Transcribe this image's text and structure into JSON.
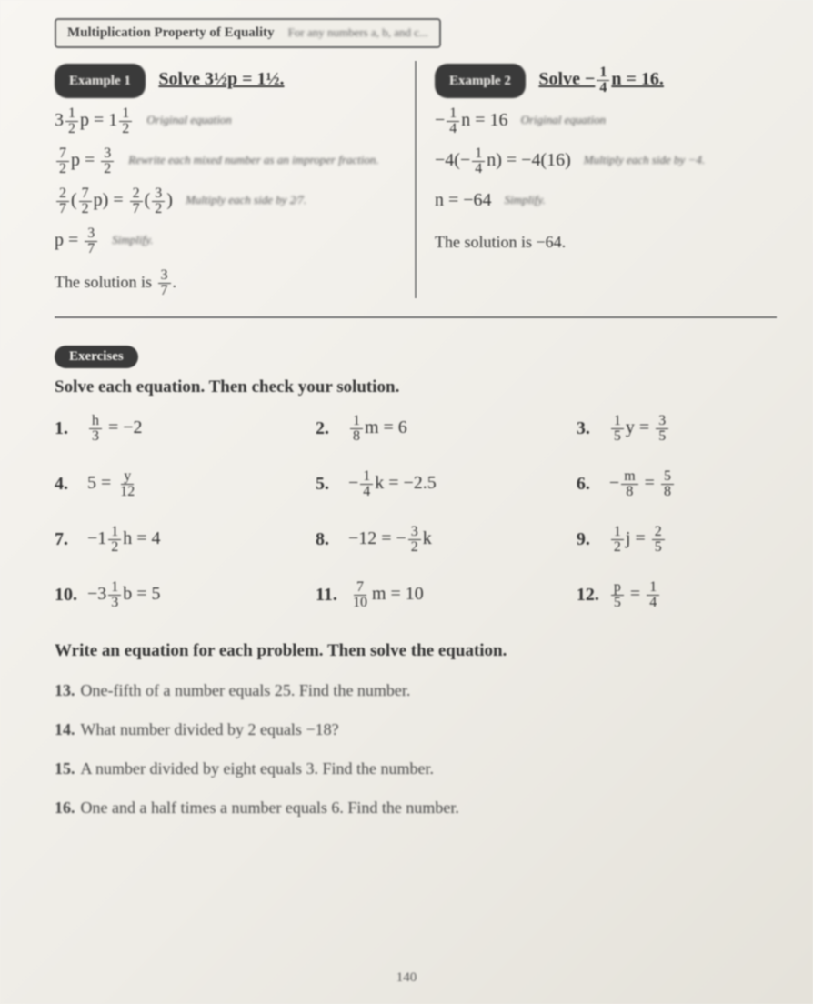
{
  "topbar": {
    "label": "Multiplication Property of Equality",
    "note": "For any numbers a, b, and c..."
  },
  "example_left": {
    "pill": "Example 1",
    "heading": "Solve 3½p = 1½.",
    "steps": [
      {
        "math": "3½p = 1½",
        "note": "Original equation"
      },
      {
        "math": "7⁄2 p = 3⁄2",
        "note": "Rewrite each mixed number as an improper fraction."
      },
      {
        "math": "2⁄7 (7⁄2 p) = 2⁄7 (3⁄2)",
        "note": "Multiply each side by 2⁄7."
      },
      {
        "math": "p = 3⁄7",
        "note": "Simplify."
      }
    ],
    "solution": "The solution is 3⁄7."
  },
  "example_right": {
    "pill": "Example 2",
    "heading": "Solve −¼n = 16.",
    "steps": [
      {
        "math": "−¼n = 16",
        "note": "Original equation"
      },
      {
        "math": "−4(−¼n) = −4(16)",
        "note": "Multiply each side by −4."
      },
      {
        "math": "n = −64",
        "note": "Simplify."
      }
    ],
    "solution": "The solution is −64."
  },
  "exercises_pill": "Exercises",
  "directions": "Solve each equation. Then check your solution.",
  "problems": {
    "p1": {
      "n": "1.",
      "body": "h⁄3 = −2"
    },
    "p2": {
      "n": "2.",
      "body": "1⁄8 m = 6"
    },
    "p3": {
      "n": "3.",
      "body": "1⁄5 y = 3⁄5"
    },
    "p4": {
      "n": "4.",
      "body": "5 = y⁄12"
    },
    "p5": {
      "n": "5.",
      "body": "−1⁄4 k = −2.5"
    },
    "p6": {
      "n": "6.",
      "body": "−m⁄8 = 5⁄8"
    },
    "p7": {
      "n": "7.",
      "body": "−1½h = 4"
    },
    "p8": {
      "n": "8.",
      "body": "−12 = −3⁄2 k"
    },
    "p9": {
      "n": "9.",
      "body": "1⁄2 j = 2⁄5"
    },
    "p10": {
      "n": "10.",
      "body": "−3⅓ b = 5"
    },
    "p11": {
      "n": "11.",
      "body": "7⁄10 m = 10"
    },
    "p12": {
      "n": "12.",
      "body": "p⁄5 = 1⁄4"
    }
  },
  "word_heading": "Write an equation for each problem. Then solve the equation.",
  "word_problems": {
    "w13": {
      "n": "13.",
      "body": "One-fifth of a number equals 25. Find the number."
    },
    "w14": {
      "n": "14.",
      "body": "What number divided by 2 equals −18?"
    },
    "w15": {
      "n": "15.",
      "body": "A number divided by eight equals 3. Find the number."
    },
    "w16": {
      "n": "16.",
      "body": "One and a half times a number equals 6. Find the number."
    }
  },
  "pagenum": "140"
}
